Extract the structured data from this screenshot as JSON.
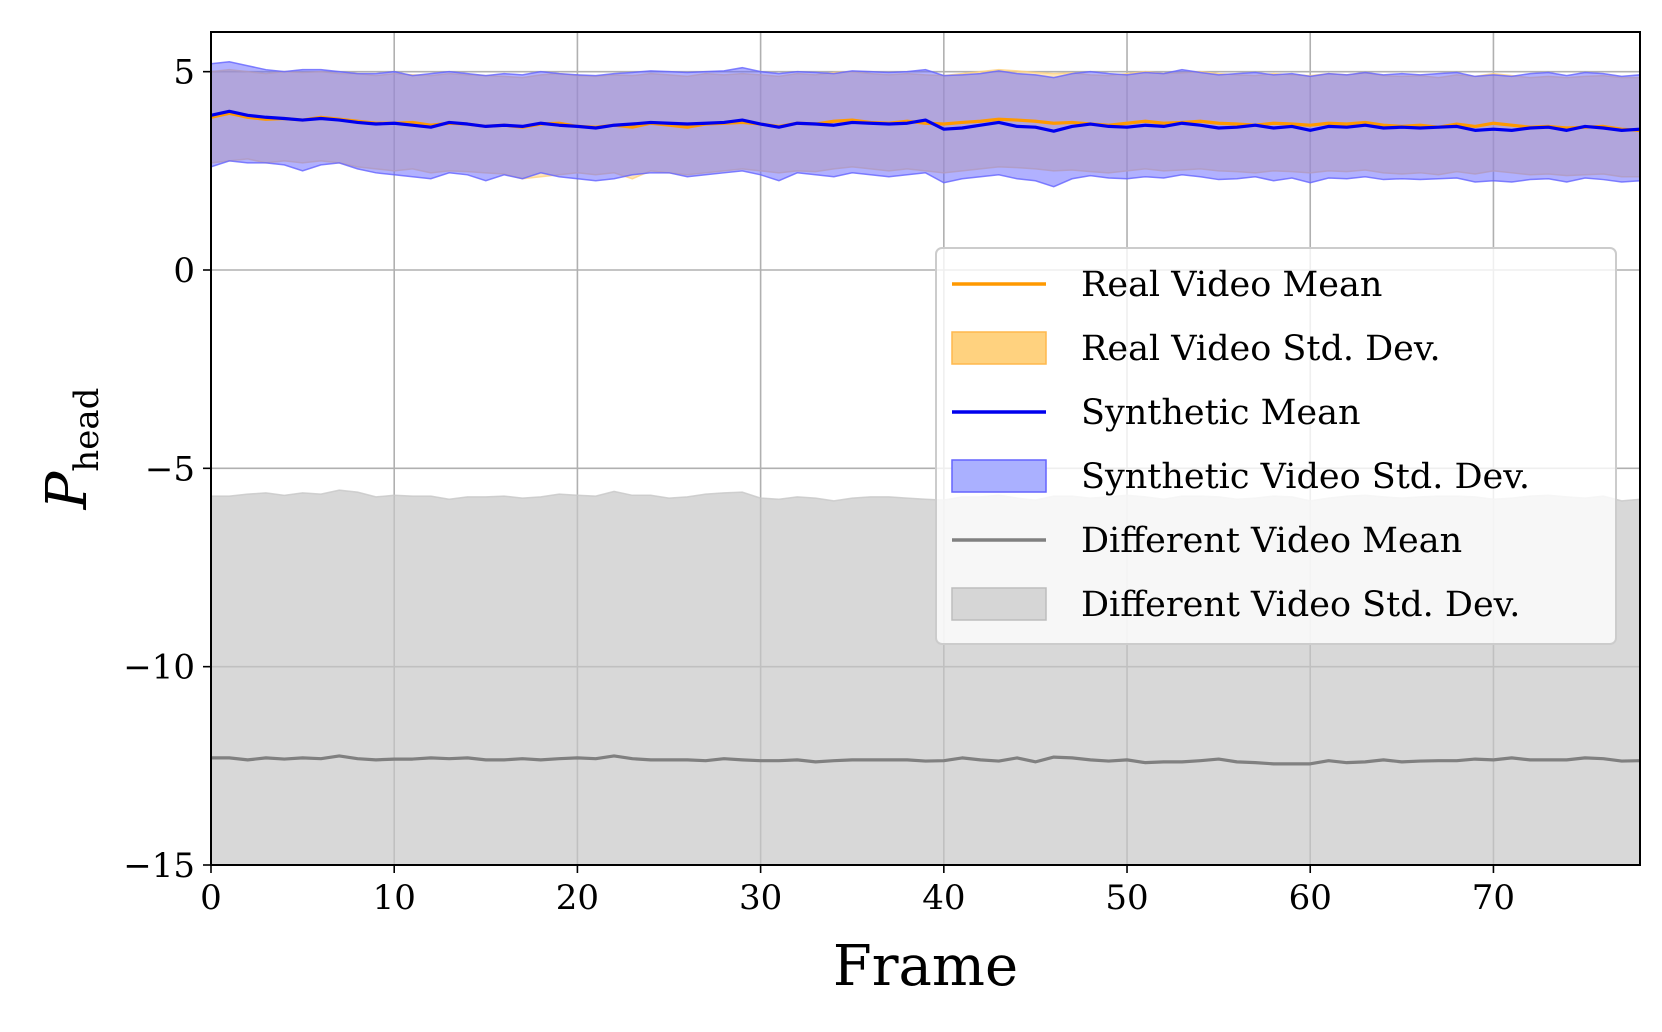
{
  "chart_data": {
    "type": "line",
    "xlabel": "Frame",
    "ylabel_main": "P",
    "ylabel_sub": "head",
    "xlim": [
      0,
      78
    ],
    "ylim": [
      -15,
      6
    ],
    "xticks": [
      0,
      10,
      20,
      30,
      40,
      50,
      60,
      70
    ],
    "yticks": [
      5,
      0,
      -5,
      -10,
      -15
    ],
    "ytick_labels": [
      "5",
      "0",
      "−5",
      "−10",
      "−15"
    ],
    "grid": true,
    "legend_position": "center-right",
    "x": [
      0,
      1,
      2,
      3,
      4,
      5,
      6,
      7,
      8,
      9,
      10,
      11,
      12,
      13,
      14,
      15,
      16,
      17,
      18,
      19,
      20,
      21,
      22,
      23,
      24,
      25,
      26,
      27,
      28,
      29,
      30,
      31,
      32,
      33,
      34,
      35,
      36,
      37,
      38,
      39,
      40,
      41,
      42,
      43,
      44,
      45,
      46,
      47,
      48,
      49,
      50,
      51,
      52,
      53,
      54,
      55,
      56,
      57,
      58,
      59,
      60,
      61,
      62,
      63,
      64,
      65,
      66,
      67,
      68,
      69,
      70,
      71,
      72,
      73,
      74,
      75,
      76,
      77,
      78
    ],
    "series": [
      {
        "name": "Real Video Mean",
        "std_name": "Real Video Std. Dev.",
        "color": "#ff9900",
        "fill_color": "#ffd27f",
        "fill_opacity": 0.55,
        "mean": [
          3.85,
          3.95,
          3.85,
          3.8,
          3.82,
          3.78,
          3.85,
          3.8,
          3.75,
          3.7,
          3.7,
          3.72,
          3.65,
          3.7,
          3.68,
          3.62,
          3.65,
          3.6,
          3.68,
          3.7,
          3.62,
          3.6,
          3.65,
          3.6,
          3.7,
          3.65,
          3.6,
          3.68,
          3.7,
          3.72,
          3.68,
          3.62,
          3.7,
          3.68,
          3.75,
          3.78,
          3.72,
          3.7,
          3.75,
          3.7,
          3.68,
          3.72,
          3.75,
          3.8,
          3.78,
          3.75,
          3.7,
          3.72,
          3.68,
          3.65,
          3.7,
          3.75,
          3.7,
          3.72,
          3.75,
          3.7,
          3.68,
          3.65,
          3.7,
          3.68,
          3.65,
          3.7,
          3.68,
          3.72,
          3.65,
          3.62,
          3.65,
          3.6,
          3.68,
          3.62,
          3.7,
          3.65,
          3.6,
          3.62,
          3.58,
          3.6,
          3.62,
          3.55,
          3.52
        ],
        "lower": [
          2.7,
          2.75,
          2.8,
          2.7,
          2.75,
          2.7,
          2.75,
          2.7,
          2.6,
          2.55,
          2.5,
          2.55,
          2.45,
          2.5,
          2.48,
          2.45,
          2.42,
          2.3,
          2.35,
          2.4,
          2.45,
          2.4,
          2.45,
          2.3,
          2.5,
          2.45,
          2.4,
          2.45,
          2.5,
          2.55,
          2.5,
          2.45,
          2.5,
          2.48,
          2.55,
          2.6,
          2.55,
          2.5,
          2.55,
          2.5,
          2.45,
          2.5,
          2.55,
          2.6,
          2.58,
          2.55,
          2.5,
          2.52,
          2.48,
          2.45,
          2.5,
          2.55,
          2.5,
          2.52,
          2.55,
          2.5,
          2.48,
          2.45,
          2.5,
          2.48,
          2.45,
          2.5,
          2.48,
          2.52,
          2.45,
          2.42,
          2.45,
          2.4,
          2.48,
          2.42,
          2.5,
          2.45,
          2.4,
          2.42,
          2.38,
          2.4,
          2.42,
          2.35,
          2.35
        ],
        "upper": [
          5.0,
          5.05,
          5.0,
          4.95,
          5.0,
          4.98,
          5.0,
          4.95,
          4.95,
          4.9,
          4.95,
          4.92,
          4.9,
          4.95,
          4.92,
          4.9,
          4.88,
          4.85,
          4.92,
          4.95,
          4.9,
          4.88,
          4.92,
          4.9,
          4.95,
          4.92,
          4.88,
          4.95,
          4.92,
          4.95,
          4.92,
          4.88,
          4.95,
          4.92,
          4.98,
          5.0,
          4.95,
          4.92,
          4.95,
          4.92,
          4.9,
          4.95,
          5.0,
          5.05,
          5.02,
          4.98,
          4.95,
          4.97,
          4.92,
          4.9,
          4.95,
          5.0,
          4.95,
          4.97,
          5.0,
          4.95,
          4.92,
          4.9,
          4.95,
          4.92,
          4.9,
          4.95,
          4.92,
          4.97,
          4.9,
          4.88,
          4.9,
          4.85,
          4.92,
          4.88,
          4.95,
          4.9,
          4.85,
          4.88,
          4.85,
          4.88,
          4.9,
          4.85,
          4.85
        ]
      },
      {
        "name": "Synthetic Mean",
        "std_name": "Synthetic Video Std. Dev.",
        "color": "#0000ee",
        "fill_color": "#6464ff",
        "fill_opacity": 0.5,
        "mean": [
          3.9,
          4.0,
          3.9,
          3.85,
          3.82,
          3.78,
          3.82,
          3.78,
          3.72,
          3.68,
          3.7,
          3.65,
          3.6,
          3.72,
          3.68,
          3.62,
          3.65,
          3.62,
          3.7,
          3.65,
          3.62,
          3.58,
          3.65,
          3.68,
          3.72,
          3.7,
          3.68,
          3.7,
          3.72,
          3.78,
          3.68,
          3.6,
          3.7,
          3.68,
          3.65,
          3.72,
          3.7,
          3.68,
          3.7,
          3.78,
          3.55,
          3.58,
          3.65,
          3.72,
          3.62,
          3.6,
          3.5,
          3.62,
          3.68,
          3.62,
          3.6,
          3.65,
          3.62,
          3.7,
          3.65,
          3.58,
          3.6,
          3.65,
          3.58,
          3.62,
          3.52,
          3.62,
          3.6,
          3.65,
          3.58,
          3.6,
          3.58,
          3.6,
          3.62,
          3.52,
          3.55,
          3.52,
          3.58,
          3.6,
          3.52,
          3.62,
          3.58,
          3.52,
          3.55
        ],
        "lower": [
          2.6,
          2.75,
          2.7,
          2.7,
          2.65,
          2.5,
          2.65,
          2.7,
          2.55,
          2.45,
          2.4,
          2.35,
          2.3,
          2.45,
          2.4,
          2.25,
          2.4,
          2.3,
          2.45,
          2.35,
          2.3,
          2.25,
          2.3,
          2.4,
          2.45,
          2.45,
          2.35,
          2.4,
          2.45,
          2.5,
          2.4,
          2.25,
          2.45,
          2.4,
          2.35,
          2.45,
          2.4,
          2.35,
          2.4,
          2.45,
          2.2,
          2.3,
          2.35,
          2.4,
          2.3,
          2.25,
          2.1,
          2.3,
          2.38,
          2.32,
          2.3,
          2.35,
          2.32,
          2.4,
          2.35,
          2.28,
          2.3,
          2.35,
          2.25,
          2.32,
          2.2,
          2.32,
          2.3,
          2.35,
          2.28,
          2.3,
          2.28,
          2.3,
          2.32,
          2.22,
          2.25,
          2.22,
          2.28,
          2.3,
          2.22,
          2.32,
          2.28,
          2.22,
          2.25
        ],
        "upper": [
          5.2,
          5.25,
          5.15,
          5.05,
          5.0,
          5.05,
          5.05,
          5.0,
          4.95,
          4.95,
          5.0,
          4.9,
          4.95,
          5.0,
          4.95,
          4.9,
          4.95,
          4.92,
          5.0,
          4.95,
          4.92,
          4.9,
          4.95,
          4.98,
          5.02,
          5.0,
          4.98,
          5.0,
          5.02,
          5.1,
          5.0,
          4.95,
          5.0,
          4.98,
          4.95,
          5.02,
          5.0,
          4.98,
          5.0,
          5.05,
          4.9,
          4.92,
          4.95,
          5.02,
          4.95,
          4.92,
          4.85,
          4.95,
          5.0,
          4.95,
          4.92,
          4.98,
          4.95,
          5.05,
          4.98,
          4.92,
          4.95,
          4.98,
          4.92,
          4.95,
          4.88,
          4.95,
          4.92,
          4.98,
          4.92,
          4.95,
          4.92,
          4.95,
          4.98,
          4.88,
          4.92,
          4.88,
          4.95,
          4.98,
          4.9,
          4.98,
          4.95,
          4.88,
          4.92
        ]
      },
      {
        "name": "Different Video Mean",
        "std_name": "Different Video Std. Dev.",
        "color": "#808080",
        "fill_color": "#c8c8c8",
        "fill_opacity": 0.7,
        "mean": [
          -12.3,
          -12.3,
          -12.35,
          -12.3,
          -12.33,
          -12.3,
          -12.32,
          -12.25,
          -12.32,
          -12.35,
          -12.33,
          -12.33,
          -12.3,
          -12.32,
          -12.3,
          -12.35,
          -12.35,
          -12.32,
          -12.35,
          -12.32,
          -12.3,
          -12.32,
          -12.25,
          -12.32,
          -12.35,
          -12.35,
          -12.35,
          -12.37,
          -12.32,
          -12.35,
          -12.37,
          -12.37,
          -12.35,
          -12.4,
          -12.37,
          -12.35,
          -12.35,
          -12.35,
          -12.35,
          -12.38,
          -12.37,
          -12.3,
          -12.35,
          -12.38,
          -12.3,
          -12.4,
          -12.28,
          -12.3,
          -12.35,
          -12.38,
          -12.35,
          -12.42,
          -12.4,
          -12.4,
          -12.37,
          -12.33,
          -12.4,
          -12.42,
          -12.45,
          -12.45,
          -12.45,
          -12.37,
          -12.42,
          -12.4,
          -12.35,
          -12.4,
          -12.38,
          -12.37,
          -12.37,
          -12.33,
          -12.35,
          -12.3,
          -12.35,
          -12.35,
          -12.35,
          -12.3,
          -12.32,
          -12.38,
          -12.37
        ],
        "lower": [
          -15.0,
          -15.0,
          -15.0,
          -15.0,
          -15.0,
          -15.0,
          -15.0,
          -15.0,
          -15.0,
          -15.0,
          -15.0,
          -15.0,
          -15.0,
          -15.0,
          -15.0,
          -15.0,
          -15.0,
          -15.0,
          -15.0,
          -15.0,
          -15.0,
          -15.0,
          -15.0,
          -15.0,
          -15.0,
          -15.0,
          -15.0,
          -15.0,
          -15.0,
          -15.0,
          -15.0,
          -15.0,
          -15.0,
          -15.0,
          -15.0,
          -15.0,
          -15.0,
          -15.0,
          -15.0,
          -15.0,
          -15.0,
          -15.0,
          -15.0,
          -15.0,
          -15.0,
          -15.0,
          -15.0,
          -15.0,
          -15.0,
          -15.0,
          -15.0,
          -15.0,
          -15.0,
          -15.0,
          -15.0,
          -15.0,
          -15.0,
          -15.0,
          -15.0,
          -15.0,
          -15.0,
          -15.0,
          -15.0,
          -15.0,
          -15.0,
          -15.0,
          -15.0,
          -15.0,
          -15.0,
          -15.0,
          -15.0,
          -15.0,
          -15.0,
          -15.0,
          -15.0,
          -15.0,
          -15.0,
          -15.0,
          -15.0
        ],
        "upper": [
          -5.7,
          -5.7,
          -5.65,
          -5.62,
          -5.68,
          -5.62,
          -5.65,
          -5.55,
          -5.6,
          -5.72,
          -5.68,
          -5.7,
          -5.7,
          -5.78,
          -5.72,
          -5.72,
          -5.7,
          -5.75,
          -5.72,
          -5.65,
          -5.68,
          -5.7,
          -5.58,
          -5.68,
          -5.68,
          -5.75,
          -5.72,
          -5.65,
          -5.62,
          -5.6,
          -5.75,
          -5.78,
          -5.72,
          -5.75,
          -5.82,
          -5.75,
          -5.72,
          -5.72,
          -5.75,
          -5.78,
          -5.8,
          -5.72,
          -5.72,
          -5.68,
          -5.75,
          -5.8,
          -5.7,
          -5.7,
          -5.75,
          -5.72,
          -5.68,
          -5.72,
          -5.78,
          -5.7,
          -5.7,
          -5.72,
          -5.78,
          -5.75,
          -5.7,
          -5.72,
          -5.82,
          -5.75,
          -5.7,
          -5.68,
          -5.72,
          -5.75,
          -5.72,
          -5.7,
          -5.7,
          -5.72,
          -5.78,
          -5.75,
          -5.7,
          -5.68,
          -5.72,
          -5.75,
          -5.7,
          -5.82,
          -5.78
        ]
      }
    ],
    "legend": [
      {
        "label": "Real Video Mean",
        "kind": "line",
        "color": "#ff9900"
      },
      {
        "label": "Real Video Std. Dev.",
        "kind": "patch",
        "color": "#ffd27f",
        "edge": "#ffb84d"
      },
      {
        "label": "Synthetic Mean",
        "kind": "line",
        "color": "#0000ee"
      },
      {
        "label": "Synthetic Video Std. Dev.",
        "kind": "patch",
        "color": "#aab0ff",
        "edge": "#6464ff"
      },
      {
        "label": "Different Video Mean",
        "kind": "line",
        "color": "#808080"
      },
      {
        "label": "Different Video Std. Dev.",
        "kind": "patch",
        "color": "#d6d6d6",
        "edge": "#bdbdbd"
      }
    ]
  }
}
